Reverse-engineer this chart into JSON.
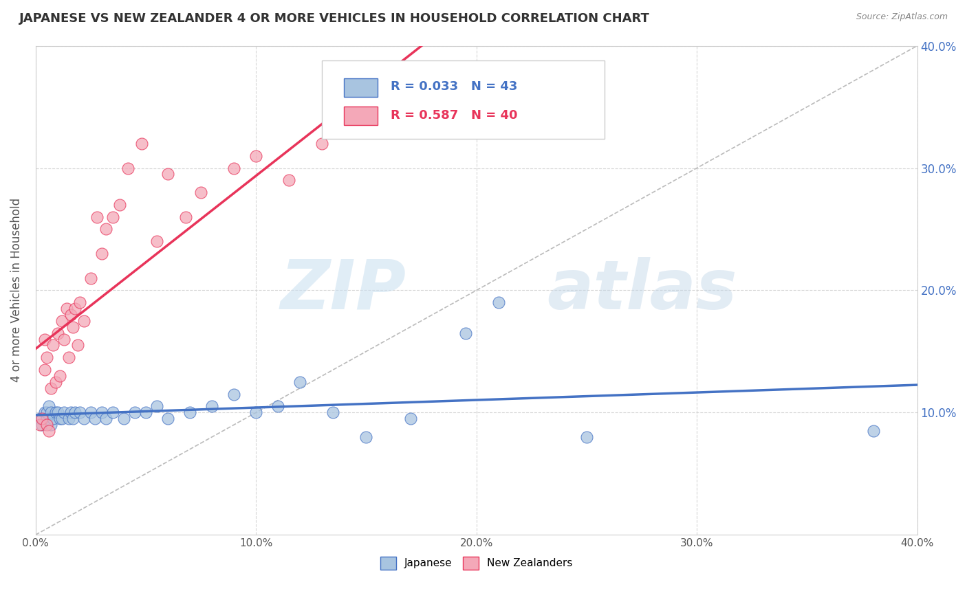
{
  "title": "JAPANESE VS NEW ZEALANDER 4 OR MORE VEHICLES IN HOUSEHOLD CORRELATION CHART",
  "source": "Source: ZipAtlas.com",
  "ylabel": "4 or more Vehicles in Household",
  "xlim": [
    0.0,
    0.4
  ],
  "ylim": [
    0.0,
    0.4
  ],
  "xtick_labels": [
    "0.0%",
    "10.0%",
    "20.0%",
    "30.0%",
    "40.0%"
  ],
  "xtick_vals": [
    0.0,
    0.1,
    0.2,
    0.3,
    0.4
  ],
  "ytick_vals": [
    0.1,
    0.2,
    0.3,
    0.4
  ],
  "right_ytick_labels": [
    "10.0%",
    "20.0%",
    "30.0%",
    "40.0%"
  ],
  "R_japanese": 0.033,
  "N_japanese": 43,
  "R_nz": 0.587,
  "N_nz": 40,
  "japanese_color": "#a8c4e0",
  "nz_color": "#f4a8b8",
  "japanese_line_color": "#4472c4",
  "nz_line_color": "#e8345a",
  "legend_japanese": "Japanese",
  "legend_nz": "New Zealanders",
  "background_color": "#ffffff",
  "grid_color": "#cccccc",
  "title_color": "#333333",
  "japanese_x": [
    0.002,
    0.003,
    0.004,
    0.005,
    0.005,
    0.006,
    0.007,
    0.007,
    0.008,
    0.009,
    0.01,
    0.011,
    0.012,
    0.013,
    0.015,
    0.016,
    0.017,
    0.018,
    0.02,
    0.022,
    0.025,
    0.027,
    0.03,
    0.032,
    0.035,
    0.04,
    0.045,
    0.05,
    0.055,
    0.06,
    0.07,
    0.08,
    0.09,
    0.1,
    0.11,
    0.12,
    0.135,
    0.15,
    0.17,
    0.195,
    0.21,
    0.25,
    0.38
  ],
  "japanese_y": [
    0.095,
    0.09,
    0.1,
    0.095,
    0.1,
    0.105,
    0.09,
    0.1,
    0.095,
    0.1,
    0.1,
    0.095,
    0.095,
    0.1,
    0.095,
    0.1,
    0.095,
    0.1,
    0.1,
    0.095,
    0.1,
    0.095,
    0.1,
    0.095,
    0.1,
    0.095,
    0.1,
    0.1,
    0.105,
    0.095,
    0.1,
    0.105,
    0.115,
    0.1,
    0.105,
    0.125,
    0.1,
    0.08,
    0.095,
    0.165,
    0.19,
    0.08,
    0.085
  ],
  "nz_x": [
    0.002,
    0.003,
    0.004,
    0.004,
    0.005,
    0.005,
    0.006,
    0.007,
    0.008,
    0.009,
    0.01,
    0.011,
    0.012,
    0.013,
    0.014,
    0.015,
    0.016,
    0.017,
    0.018,
    0.019,
    0.02,
    0.022,
    0.025,
    0.028,
    0.03,
    0.032,
    0.035,
    0.038,
    0.042,
    0.048,
    0.055,
    0.06,
    0.068,
    0.075,
    0.09,
    0.1,
    0.115,
    0.13,
    0.155,
    0.185
  ],
  "nz_y": [
    0.09,
    0.095,
    0.135,
    0.16,
    0.09,
    0.145,
    0.085,
    0.12,
    0.155,
    0.125,
    0.165,
    0.13,
    0.175,
    0.16,
    0.185,
    0.145,
    0.18,
    0.17,
    0.185,
    0.155,
    0.19,
    0.175,
    0.21,
    0.26,
    0.23,
    0.25,
    0.26,
    0.27,
    0.3,
    0.32,
    0.24,
    0.295,
    0.26,
    0.28,
    0.3,
    0.31,
    0.29,
    0.32,
    0.33,
    0.34
  ]
}
